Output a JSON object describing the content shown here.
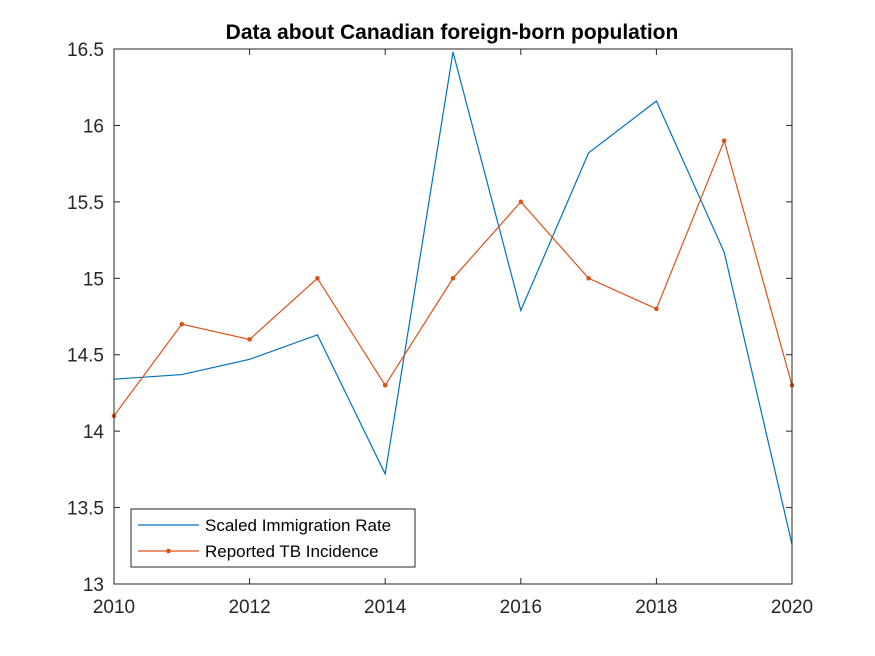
{
  "chart_data": {
    "type": "line",
    "title": "Data about Canadian foreign-born population",
    "xlabel": "",
    "ylabel": "",
    "xlim": [
      2010,
      2020
    ],
    "ylim": [
      13,
      16.5
    ],
    "x": [
      2010,
      2011,
      2012,
      2013,
      2014,
      2015,
      2016,
      2017,
      2018,
      2019,
      2020
    ],
    "xticks": [
      "2010",
      "2012",
      "2014",
      "2016",
      "2018",
      "2020"
    ],
    "yticks": [
      "13",
      "13.5",
      "14",
      "14.5",
      "15",
      "15.5",
      "16",
      "16.5"
    ],
    "grid": false,
    "legend_position": "bottom-left",
    "series": [
      {
        "name": "Scaled Immigration Rate",
        "color": "#0072BD",
        "marker": "none",
        "values": [
          14.34,
          14.37,
          14.47,
          14.63,
          13.72,
          16.48,
          14.79,
          15.82,
          16.16,
          15.17,
          13.26
        ]
      },
      {
        "name": "Reported TB Incidence",
        "color": "#D95319",
        "marker": "dot",
        "values": [
          14.1,
          14.7,
          14.6,
          15.0,
          14.3,
          15.0,
          15.5,
          15.0,
          14.8,
          15.9,
          14.3
        ]
      }
    ]
  }
}
